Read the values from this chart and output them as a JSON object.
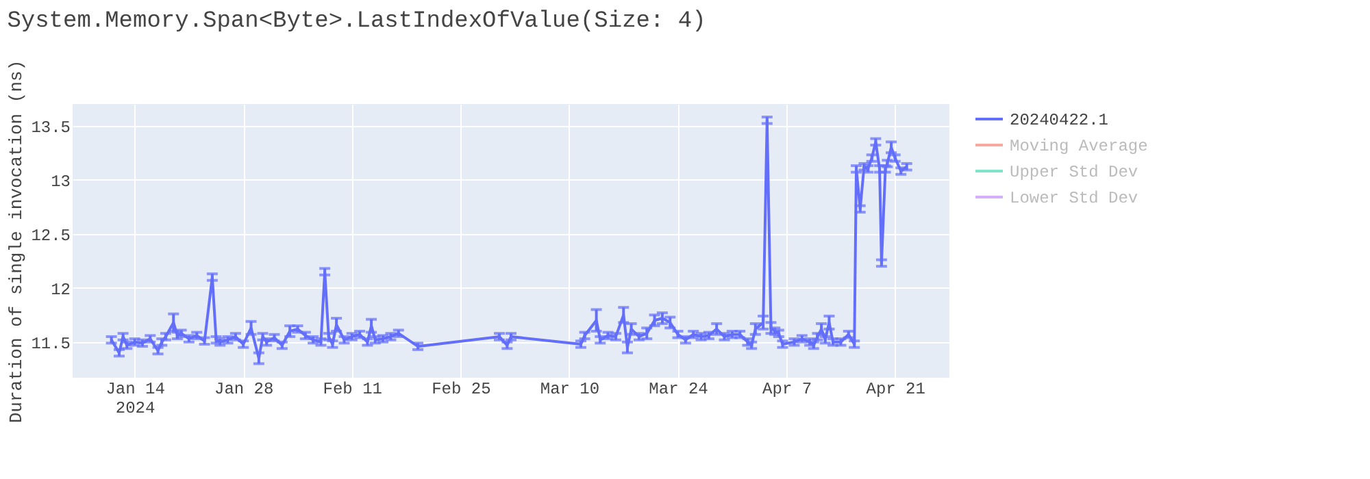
{
  "chart_data": {
    "type": "line",
    "title": "System.Memory.Span<Byte>.LastIndexOfValue(Size: 4)",
    "ylabel": "Duration of single invocation (ns)",
    "xlim": [
      "2024-01-06",
      "2024-04-28"
    ],
    "xticks": [
      {
        "value": "2024-01-14",
        "label": "Jan 14\n2024"
      },
      {
        "value": "2024-01-28",
        "label": "Jan 28"
      },
      {
        "value": "2024-02-11",
        "label": "Feb 11"
      },
      {
        "value": "2024-02-25",
        "label": "Feb 25"
      },
      {
        "value": "2024-03-10",
        "label": "Mar 10"
      },
      {
        "value": "2024-03-24",
        "label": "Mar 24"
      },
      {
        "value": "2024-04-07",
        "label": "Apr 7"
      },
      {
        "value": "2024-04-21",
        "label": "Apr 21"
      }
    ],
    "ylim": [
      11.17,
      13.7
    ],
    "yticks": [
      11.5,
      12,
      12.5,
      13,
      13.5
    ],
    "grid": true,
    "legend": "top right",
    "marker": "none",
    "line_style": "solid",
    "series": [
      {
        "name": "20240422.1",
        "color": "#636efa",
        "x": [
          "2024-01-11",
          "2024-01-12",
          "2024-01-12T12:00",
          "2024-01-13",
          "2024-01-14",
          "2024-01-15",
          "2024-01-16",
          "2024-01-17",
          "2024-01-17T12:00",
          "2024-01-18",
          "2024-01-19",
          "2024-01-19T12:00",
          "2024-01-20",
          "2024-01-21",
          "2024-01-22",
          "2024-01-23",
          "2024-01-24",
          "2024-01-24T12:00",
          "2024-01-25",
          "2024-01-26",
          "2024-01-27",
          "2024-01-28",
          "2024-01-29",
          "2024-01-30",
          "2024-01-30T12:00",
          "2024-01-31",
          "2024-02-01",
          "2024-02-02",
          "2024-02-03",
          "2024-02-04",
          "2024-02-05",
          "2024-02-06",
          "2024-02-07",
          "2024-02-07T12:00",
          "2024-02-08",
          "2024-02-08T12:00",
          "2024-02-09",
          "2024-02-10",
          "2024-02-11",
          "2024-02-12",
          "2024-02-13",
          "2024-02-13T12:00",
          "2024-02-14",
          "2024-02-15",
          "2024-02-16",
          "2024-02-17",
          "2024-02-19T12:00",
          "2024-03-01",
          "2024-03-02",
          "2024-03-02T12:00",
          "2024-03-11T12:00",
          "2024-03-12",
          "2024-03-13T12:00",
          "2024-03-14",
          "2024-03-15",
          "2024-03-16",
          "2024-03-17",
          "2024-03-17T12:00",
          "2024-03-18",
          "2024-03-19",
          "2024-03-20",
          "2024-03-21",
          "2024-03-22",
          "2024-03-23",
          "2024-03-24",
          "2024-03-25",
          "2024-03-26",
          "2024-03-27",
          "2024-03-28",
          "2024-03-29",
          "2024-03-30",
          "2024-03-31",
          "2024-04-01",
          "2024-04-02",
          "2024-04-02T12:00",
          "2024-04-03",
          "2024-04-04",
          "2024-04-04T12:00",
          "2024-04-05",
          "2024-04-05T12:00",
          "2024-04-06",
          "2024-04-06T12:00",
          "2024-04-08",
          "2024-04-09",
          "2024-04-10",
          "2024-04-10T12:00",
          "2024-04-11",
          "2024-04-11T12:00",
          "2024-04-12",
          "2024-04-12T12:00",
          "2024-04-13",
          "2024-04-14",
          "2024-04-15",
          "2024-04-15T18:00",
          "2024-04-16",
          "2024-04-16T12:00",
          "2024-04-17",
          "2024-04-17T12:00",
          "2024-04-18",
          "2024-04-18T12:00",
          "2024-04-19",
          "2024-04-19T06:00",
          "2024-04-19T18:00",
          "2024-04-20",
          "2024-04-20T12:00",
          "2024-04-21",
          "2024-04-21T18:00",
          "2024-04-22T12:00"
        ],
        "values": [
          11.52,
          11.4,
          11.55,
          11.47,
          11.5,
          11.49,
          11.53,
          11.42,
          11.5,
          11.55,
          11.68,
          11.56,
          11.58,
          11.53,
          11.56,
          11.51,
          12.1,
          11.52,
          11.5,
          11.52,
          11.55,
          11.48,
          11.63,
          11.35,
          11.55,
          11.5,
          11.54,
          11.47,
          11.6,
          11.62,
          11.56,
          11.52,
          11.5,
          12.15,
          11.55,
          11.48,
          11.66,
          11.52,
          11.55,
          11.57,
          11.5,
          11.65,
          11.52,
          11.53,
          11.55,
          11.58,
          11.46,
          11.55,
          11.47,
          11.55,
          11.48,
          11.56,
          11.7,
          11.52,
          11.56,
          11.55,
          11.75,
          11.45,
          11.62,
          11.55,
          11.58,
          11.7,
          11.72,
          11.68,
          11.57,
          11.52,
          11.57,
          11.55,
          11.56,
          11.62,
          11.55,
          11.57,
          11.57,
          11.5,
          11.47,
          11.62,
          11.68,
          13.55,
          11.63,
          11.6,
          11.58,
          11.48,
          11.5,
          11.53,
          11.5,
          11.47,
          11.55,
          11.62,
          11.52,
          11.68,
          11.5,
          11.5,
          11.57,
          11.48,
          13.1,
          12.73,
          13.12,
          13.1,
          13.2,
          13.35,
          13.1,
          12.23,
          13.1,
          13.15,
          13.3,
          13.2,
          13.08,
          13.12
        ],
        "errors": [
          0.03,
          0.03,
          0.03,
          0.03,
          0.03,
          0.03,
          0.03,
          0.03,
          0.03,
          0.03,
          0.08,
          0.03,
          0.03,
          0.03,
          0.03,
          0.03,
          0.03,
          0.03,
          0.03,
          0.03,
          0.03,
          0.03,
          0.06,
          0.05,
          0.03,
          0.03,
          0.03,
          0.03,
          0.05,
          0.03,
          0.03,
          0.03,
          0.03,
          0.03,
          0.03,
          0.03,
          0.06,
          0.03,
          0.03,
          0.03,
          0.03,
          0.06,
          0.03,
          0.03,
          0.03,
          0.03,
          0.03,
          0.03,
          0.03,
          0.03,
          0.03,
          0.03,
          0.1,
          0.03,
          0.03,
          0.03,
          0.07,
          0.05,
          0.05,
          0.03,
          0.05,
          0.05,
          0.05,
          0.05,
          0.03,
          0.03,
          0.03,
          0.03,
          0.03,
          0.05,
          0.03,
          0.03,
          0.03,
          0.03,
          0.03,
          0.05,
          0.06,
          0.03,
          0.05,
          0.03,
          0.03,
          0.03,
          0.03,
          0.03,
          0.03,
          0.03,
          0.03,
          0.05,
          0.03,
          0.06,
          0.03,
          0.03,
          0.03,
          0.03,
          0.03,
          0.03,
          0.03,
          0.03,
          0.03,
          0.03,
          0.03,
          0.03,
          0.03,
          0.03,
          0.05,
          0.03,
          0.03,
          0.03
        ]
      },
      {
        "name": "Moving Average",
        "color": "#ef553b"
      },
      {
        "name": "Upper Std Dev",
        "color": "#00cc96"
      },
      {
        "name": "Lower Std Dev",
        "color": "#ab63fa"
      }
    ]
  }
}
